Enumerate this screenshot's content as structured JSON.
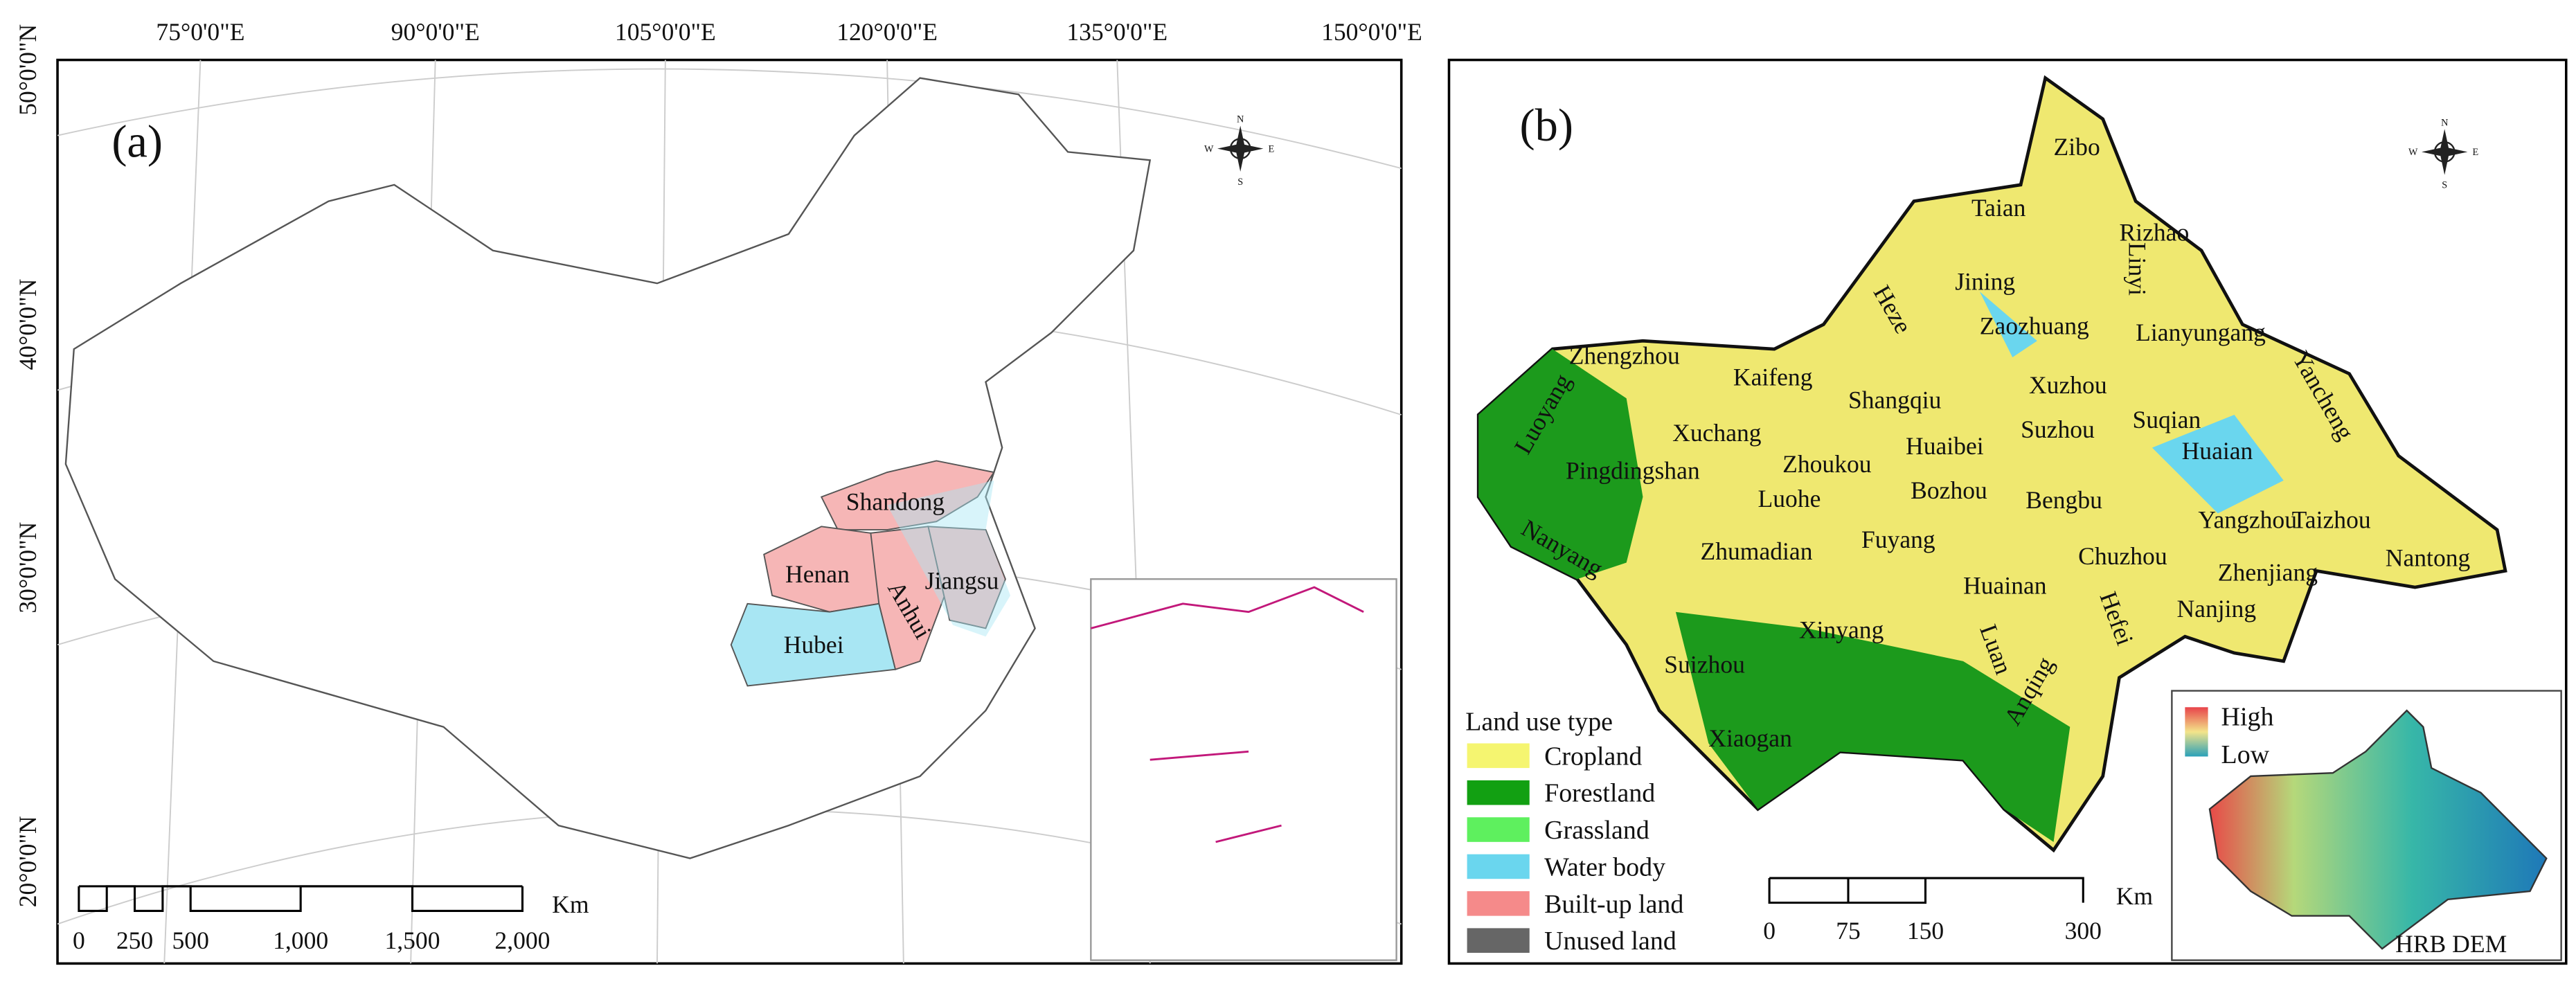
{
  "panel_a": {
    "label": "(a)",
    "lon_labels": [
      "75°0'0\"E",
      "90°0'0\"E",
      "105°0'0\"E",
      "120°0'0\"E",
      "135°0'0\"E",
      "150°0'0\"E"
    ],
    "lat_labels": [
      "50°0'0\"N",
      "40°0'0\"N",
      "30°0'0\"N",
      "20°0'0\"N"
    ],
    "provinces": [
      "Shandong",
      "Henan",
      "Anhui",
      "Jiangsu",
      "Hubei"
    ],
    "scale": {
      "unit": "Km",
      "labels": [
        "0",
        "250",
        "500",
        "1,000",
        "1,500",
        "2,000"
      ]
    },
    "compass": [
      "N",
      "E",
      "S",
      "W"
    ]
  },
  "panel_b": {
    "label": "(b)",
    "cities": [
      "Zibo",
      "Taian",
      "Rizhao",
      "Linyi",
      "Jining",
      "Heze",
      "Zaozhuang",
      "Lianyungang",
      "Zhengzhou",
      "Kaifeng",
      "Shangqiu",
      "Xuzhou",
      "Yancheng",
      "Luoyang",
      "Xuchang",
      "Suzhou",
      "Suqian",
      "Huaibei",
      "Zhoukou",
      "Huaian",
      "Pingdingshan",
      "Luohe",
      "Bozhou",
      "Bengbu",
      "Nanyang",
      "Yangzhou",
      "Taizhou",
      "Nantong",
      "Zhumadian",
      "Fuyang",
      "Chuzhou",
      "Zhenjiang",
      "Huainan",
      "Hefei",
      "Nanjing",
      "Xinyang",
      "Luan",
      "Suizhou",
      "Xiaogan",
      "Anqing"
    ],
    "legend": {
      "title": "Land use type",
      "items": [
        {
          "label": "Cropland",
          "color": "#f5f570"
        },
        {
          "label": "Forestland",
          "color": "#12a012"
        },
        {
          "label": "Grassland",
          "color": "#5ef05e"
        },
        {
          "label": "Water body",
          "color": "#6ad6ee"
        },
        {
          "label": "Built-up land",
          "color": "#f58a8a"
        },
        {
          "label": "Unused land",
          "color": "#666666"
        }
      ]
    },
    "scale": {
      "unit": "Km",
      "labels": [
        "0",
        "75",
        "150",
        "300"
      ]
    },
    "dem": {
      "high": "High",
      "low": "Low",
      "title": "HRB DEM"
    },
    "compass": [
      "N",
      "E",
      "S",
      "W"
    ]
  }
}
